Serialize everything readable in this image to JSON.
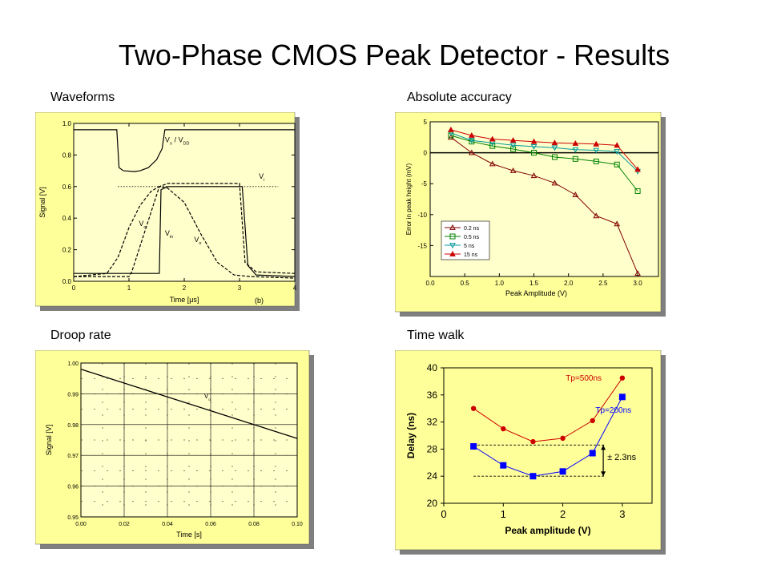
{
  "title": "Two-Phase CMOS Peak Detector - Results",
  "captions": {
    "waveforms": "Waveforms",
    "accuracy": "Absolute accuracy",
    "droop": "Droop rate",
    "timewalk": "Time walk"
  },
  "colors": {
    "panel_bg": "#ffff99",
    "plot_bg": "#ffffcc",
    "shadow": "#7f7f7f",
    "red": "#cc0000",
    "blue": "#0000ff",
    "green": "#008000",
    "teal": "#009999",
    "maroon": "#800000"
  },
  "chart_data": [
    {
      "id": "waveforms",
      "type": "line",
      "xlabel": "Time [μs]",
      "xnote": "(b)",
      "ylabel": "Signal [V]",
      "xlim": [
        0,
        4
      ],
      "ylim": [
        0.0,
        1.0
      ],
      "xticks": [
        "0",
        "1",
        "2",
        "3",
        "4"
      ],
      "yticks": [
        "0.0",
        "0.2",
        "0.4",
        "0.6",
        "0.8",
        "1.0"
      ],
      "annotations": [
        "V_o / V_DD",
        "V_o",
        "V_in",
        "V_o",
        "V_i"
      ],
      "series": [
        {
          "style": "solid",
          "points": [
            [
              0.0,
              0.96
            ],
            [
              0.78,
              0.96
            ],
            [
              0.82,
              0.72
            ],
            [
              0.9,
              0.7
            ],
            [
              1.1,
              0.695
            ],
            [
              1.2,
              0.7
            ],
            [
              1.35,
              0.72
            ],
            [
              1.5,
              0.77
            ],
            [
              1.6,
              0.84
            ],
            [
              1.65,
              0.96
            ],
            [
              4.0,
              0.96
            ]
          ]
        },
        {
          "style": "solid",
          "points": [
            [
              0.0,
              0.05
            ],
            [
              1.55,
              0.05
            ],
            [
              1.58,
              0.58
            ],
            [
              1.7,
              0.6
            ],
            [
              3.05,
              0.6
            ],
            [
              3.15,
              0.1
            ],
            [
              3.3,
              0.04
            ],
            [
              4.0,
              0.03
            ]
          ]
        },
        {
          "style": "dashed",
          "points": [
            [
              0.0,
              0.03
            ],
            [
              0.6,
              0.05
            ],
            [
              0.8,
              0.15
            ],
            [
              1.0,
              0.34
            ],
            [
              1.2,
              0.48
            ],
            [
              1.4,
              0.57
            ],
            [
              1.55,
              0.6
            ],
            [
              1.7,
              0.59
            ],
            [
              2.0,
              0.5
            ],
            [
              2.3,
              0.3
            ],
            [
              2.6,
              0.12
            ],
            [
              2.9,
              0.04
            ],
            [
              3.2,
              0.03
            ],
            [
              4.0,
              0.02
            ]
          ]
        },
        {
          "style": "dashed",
          "points": [
            [
              0.0,
              0.03
            ],
            [
              1.0,
              0.03
            ],
            [
              1.05,
              0.06
            ],
            [
              1.55,
              0.6
            ],
            [
              1.7,
              0.62
            ],
            [
              3.0,
              0.62
            ],
            [
              3.1,
              0.12
            ],
            [
              3.3,
              0.06
            ],
            [
              4.0,
              0.05
            ]
          ]
        }
      ],
      "reference_line": 0.6
    },
    {
      "id": "accuracy",
      "type": "line",
      "xlabel": "Peak Amplitude (V)",
      "ylabel": "Error in peak height (mV)",
      "xlim": [
        0.0,
        3.3
      ],
      "ylim": [
        -20,
        5
      ],
      "xticks": [
        "0.0",
        "0.5",
        "1.0",
        "1.5",
        "2.0",
        "2.5",
        "3.0"
      ],
      "yticks": [
        "5",
        "0",
        "-5",
        "-10",
        "-15"
      ],
      "series": [
        {
          "name": "0.2 ns",
          "marker": "triangle-open",
          "color": "maroon",
          "x": [
            0.3,
            0.6,
            0.9,
            1.2,
            1.5,
            1.8,
            2.1,
            2.4,
            2.7,
            3.0
          ],
          "y": [
            2.5,
            0.0,
            -1.8,
            -2.9,
            -3.7,
            -4.9,
            -6.8,
            -10.2,
            -11.5,
            -19.5
          ]
        },
        {
          "name": "0.5 ns",
          "marker": "square-open",
          "color": "green",
          "x": [
            0.3,
            0.6,
            0.9,
            1.2,
            1.5,
            1.8,
            2.1,
            2.4,
            2.7,
            3.0
          ],
          "y": [
            2.8,
            1.8,
            1.1,
            0.6,
            0.0,
            -0.7,
            -1.0,
            -1.4,
            -1.9,
            -6.2
          ]
        },
        {
          "name": "5 ns",
          "marker": "triangle-down-open",
          "color": "teal",
          "x": [
            0.3,
            0.6,
            0.9,
            1.2,
            1.5,
            1.8,
            2.1,
            2.4,
            2.7,
            3.0
          ],
          "y": [
            3.2,
            2.0,
            1.6,
            1.2,
            1.0,
            0.8,
            0.5,
            0.4,
            0.2,
            -3.0
          ]
        },
        {
          "name": "15 ns",
          "marker": "triangle-filled",
          "color": "red",
          "x": [
            0.3,
            0.6,
            0.9,
            1.2,
            1.5,
            1.8,
            2.1,
            2.4,
            2.7,
            3.0
          ],
          "y": [
            3.7,
            2.8,
            2.2,
            2.0,
            1.8,
            1.6,
            1.5,
            1.4,
            1.2,
            -2.7
          ]
        }
      ],
      "legend": "bottom-left"
    },
    {
      "id": "droop",
      "type": "line",
      "xlabel": "Time [s]",
      "ylabel": "Signal [V]",
      "xlim": [
        0.0,
        0.1
      ],
      "ylim": [
        0.95,
        1.0
      ],
      "xticks": [
        "0.00",
        "0.02",
        "0.04",
        "0.06",
        "0.08",
        "0.10"
      ],
      "yticks": [
        "0.95",
        "0.96",
        "0.97",
        "0.98",
        "0.99",
        "1.00"
      ],
      "annotations": [
        "V_o"
      ],
      "series": [
        {
          "style": "solid",
          "points": [
            [
              0.0,
              0.998
            ],
            [
              0.1,
              0.9755
            ]
          ]
        }
      ],
      "grid": true
    },
    {
      "id": "timewalk",
      "type": "line",
      "xlabel": "Peak amplitude (V)",
      "ylabel": "Delay (ns)",
      "xlim": [
        0,
        3.5
      ],
      "ylim": [
        20,
        40
      ],
      "xticks": [
        "0",
        "1",
        "2",
        "3"
      ],
      "yticks": [
        "20",
        "24",
        "28",
        "32",
        "36",
        "40"
      ],
      "series": [
        {
          "name": "Tp=500ns",
          "marker": "circle",
          "color": "red",
          "x": [
            0.5,
            1.0,
            1.5,
            2.0,
            2.5,
            3.0
          ],
          "y": [
            34.0,
            31.0,
            29.1,
            29.6,
            32.2,
            38.5
          ]
        },
        {
          "name": "Tp=200ns",
          "marker": "square",
          "color": "blue",
          "x": [
            0.5,
            1.0,
            1.5,
            2.0,
            2.5,
            3.0
          ],
          "y": [
            28.4,
            25.6,
            24.0,
            24.7,
            27.4,
            35.7
          ]
        }
      ],
      "annotation": "± 2.3ns",
      "ref_levels": [
        28.6,
        24.0
      ]
    }
  ]
}
